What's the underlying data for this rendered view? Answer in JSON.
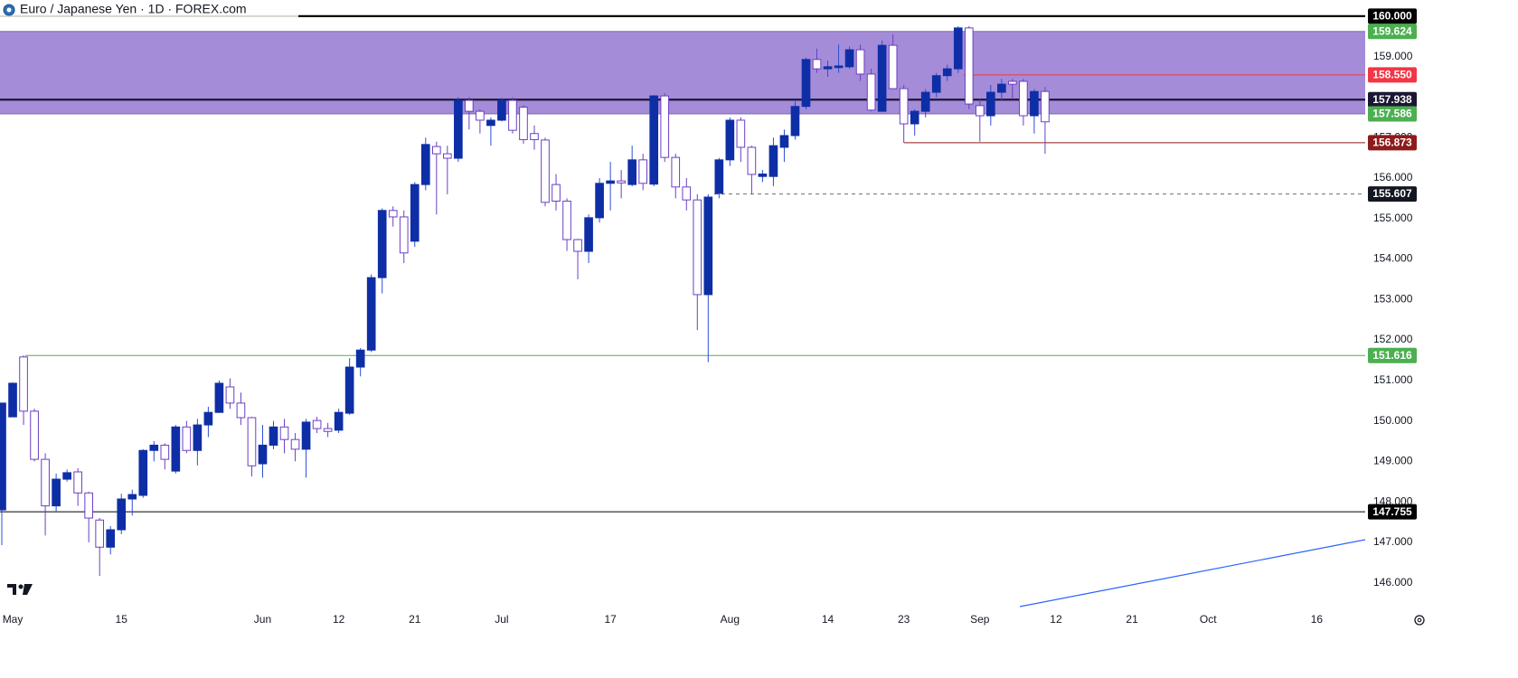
{
  "chart_data": {
    "type": "candlestick",
    "title": "Euro / Japanese Yen · 1D · FOREX.com",
    "categories": [
      null,
      "May",
      null,
      null,
      null,
      null,
      null,
      null,
      null,
      null,
      null,
      "15",
      null,
      null,
      null,
      null,
      null,
      null,
      null,
      null,
      null,
      null,
      null,
      null,
      "Jun",
      null,
      null,
      null,
      null,
      null,
      null,
      "12",
      null,
      null,
      null,
      null,
      null,
      null,
      "21",
      null,
      null,
      null,
      null,
      null,
      null,
      null,
      "Jul",
      null,
      null,
      null,
      null,
      null,
      null,
      null,
      null,
      null,
      "17",
      null,
      null,
      null,
      null,
      null,
      null,
      null,
      null,
      null,
      null,
      "Aug",
      null,
      null,
      null,
      null,
      null,
      null,
      null,
      null,
      "14",
      null,
      null,
      null,
      null,
      null,
      null,
      "23",
      null,
      null,
      null,
      null,
      null,
      null,
      "Sep",
      null,
      null,
      null,
      null,
      null,
      null,
      "12",
      null,
      null,
      null,
      null,
      null,
      null,
      "21",
      null,
      null,
      null,
      null,
      null,
      null,
      "Oct",
      null,
      null,
      null,
      null,
      null,
      null,
      null,
      null,
      null,
      "16",
      null,
      null,
      null,
      null
    ],
    "open": [
      147.8,
      150.1,
      151.58,
      150.24,
      149.05,
      147.9,
      148.56,
      148.74,
      148.22,
      147.55,
      146.88,
      147.31,
      148.07,
      148.16,
      149.27,
      149.4,
      148.76,
      149.85,
      149.27,
      149.9,
      150.21,
      150.84,
      150.44,
      150.08,
      148.94,
      149.4,
      149.85,
      149.54,
      149.3,
      150.01,
      149.81,
      149.77,
      150.19,
      151.33,
      151.75,
      153.54,
      155.2,
      155.04,
      154.44,
      155.84,
      156.78,
      156.6,
      156.49,
      157.92,
      157.65,
      157.3,
      157.43,
      157.92,
      157.75,
      157.1,
      156.94,
      155.84,
      155.43,
      154.48,
      154.19,
      155.02,
      155.87,
      155.93,
      155.84,
      156.45,
      155.85,
      158.03,
      156.51,
      155.78,
      155.46,
      153.12,
      155.62,
      156.45,
      157.43,
      156.76,
      156.04,
      156.04,
      156.76,
      157.05,
      157.77,
      158.93,
      158.7,
      158.73,
      158.75,
      159.17,
      158.57,
      157.65,
      159.28,
      158.21,
      157.34,
      157.65,
      158.12,
      158.53,
      158.7,
      159.71,
      157.79,
      157.54,
      158.12,
      158.39,
      158.39,
      157.54,
      158.14,
      null,
      null,
      null,
      null,
      null,
      null,
      null,
      null,
      null,
      null,
      null,
      null,
      null,
      null,
      null,
      null,
      null,
      null,
      null,
      null,
      null,
      null,
      null,
      null,
      null,
      null,
      null,
      null,
      null
    ],
    "high": [
      150.45,
      150.95,
      151.62,
      150.3,
      149.2,
      148.7,
      148.8,
      148.83,
      148.25,
      147.6,
      147.4,
      148.2,
      148.3,
      149.3,
      149.5,
      149.45,
      149.9,
      150.0,
      150.05,
      150.35,
      151.0,
      151.05,
      150.7,
      150.1,
      149.9,
      150.0,
      150.05,
      149.7,
      150.05,
      150.1,
      149.95,
      150.3,
      151.55,
      151.8,
      153.62,
      155.25,
      155.3,
      155.2,
      155.9,
      157.0,
      156.9,
      156.8,
      158.0,
      158.0,
      157.7,
      157.5,
      157.98,
      158.0,
      157.8,
      157.3,
      157.0,
      156.1,
      155.5,
      154.5,
      155.1,
      156.0,
      156.4,
      156.2,
      156.8,
      156.6,
      158.05,
      158.1,
      156.6,
      156.0,
      155.6,
      155.6,
      156.5,
      157.5,
      157.5,
      156.8,
      156.2,
      157.0,
      157.2,
      157.9,
      158.98,
      159.2,
      158.9,
      159.3,
      159.25,
      159.3,
      158.7,
      159.4,
      159.55,
      158.3,
      157.7,
      158.2,
      158.6,
      158.8,
      159.75,
      159.75,
      157.95,
      158.3,
      158.45,
      158.45,
      158.45,
      158.2,
      158.25,
      null,
      null,
      null,
      null,
      null,
      null,
      null,
      null,
      null,
      null,
      null,
      null,
      null,
      null,
      null,
      null,
      null,
      null,
      null,
      null,
      null,
      null,
      null,
      null,
      null,
      null,
      null,
      null,
      null
    ],
    "low": [
      146.93,
      150.1,
      149.9,
      149.0,
      147.17,
      147.75,
      148.5,
      147.9,
      147.0,
      146.17,
      146.7,
      147.2,
      147.66,
      148.1,
      149.0,
      148.8,
      148.7,
      149.2,
      148.9,
      149.6,
      150.2,
      150.3,
      149.9,
      148.63,
      148.6,
      149.3,
      149.2,
      149.0,
      148.6,
      149.7,
      149.6,
      149.7,
      150.15,
      151.1,
      151.7,
      153.15,
      154.8,
      153.9,
      154.3,
      155.7,
      155.1,
      155.6,
      156.4,
      157.2,
      157.1,
      156.8,
      157.4,
      157.1,
      156.85,
      156.7,
      155.3,
      155.2,
      154.2,
      153.5,
      153.9,
      154.9,
      155.2,
      155.5,
      155.8,
      155.7,
      155.8,
      156.4,
      155.5,
      155.2,
      152.24,
      151.45,
      155.5,
      156.3,
      156.4,
      155.6,
      155.9,
      155.8,
      156.4,
      156.95,
      157.7,
      158.6,
      158.5,
      158.6,
      158.7,
      158.4,
      157.65,
      157.65,
      158.2,
      156.87,
      157.05,
      157.5,
      158.0,
      158.4,
      158.6,
      157.7,
      156.9,
      157.3,
      157.9,
      157.95,
      157.3,
      157.1,
      156.6,
      null,
      null,
      null,
      null,
      null,
      null,
      null,
      null,
      null,
      null,
      null,
      null,
      null,
      null,
      null,
      null,
      null,
      null,
      null,
      null,
      null,
      null,
      null,
      null,
      null,
      null,
      null,
      null,
      null
    ],
    "close": [
      150.44,
      150.93,
      150.24,
      149.05,
      147.9,
      148.56,
      148.72,
      148.22,
      147.6,
      146.88,
      147.31,
      148.07,
      148.18,
      149.27,
      149.4,
      149.05,
      149.85,
      149.27,
      149.9,
      150.21,
      150.93,
      150.44,
      150.08,
      148.89,
      149.4,
      149.85,
      149.54,
      149.3,
      149.97,
      149.81,
      149.74,
      150.21,
      151.33,
      151.75,
      153.54,
      155.2,
      155.04,
      154.15,
      155.84,
      156.83,
      156.6,
      156.49,
      157.92,
      157.65,
      157.43,
      157.43,
      157.92,
      157.18,
      156.95,
      156.95,
      155.4,
      155.43,
      154.48,
      154.19,
      155.02,
      155.87,
      155.93,
      155.88,
      156.45,
      155.87,
      158.03,
      156.51,
      155.78,
      155.46,
      153.12,
      155.53,
      156.45,
      157.43,
      156.76,
      156.09,
      156.1,
      156.8,
      157.05,
      157.77,
      158.93,
      158.7,
      158.75,
      158.77,
      159.17,
      158.57,
      157.68,
      159.28,
      158.21,
      157.34,
      157.65,
      158.12,
      158.53,
      158.7,
      159.71,
      157.83,
      157.54,
      158.12,
      158.32,
      158.32,
      157.54,
      158.14,
      157.39,
      null,
      null,
      null,
      null,
      null,
      null,
      null,
      null,
      null,
      null,
      null,
      null,
      null,
      null,
      null,
      null,
      null,
      null,
      null,
      null,
      null,
      null,
      null,
      null,
      null,
      null,
      null,
      null,
      null
    ],
    "up_color": "#0e2ea6",
    "up_wick_color": "#2b4fd6",
    "down_color": "#ffffff",
    "down_border_color": "#6c3fc4",
    "ylim": [
      145.3,
      160.4
    ],
    "yticks": [
      {
        "value": 146,
        "label": "146.000"
      },
      {
        "value": 147,
        "label": "147.000"
      },
      {
        "value": 148,
        "label": "148.000"
      },
      {
        "value": 149,
        "label": "149.000"
      },
      {
        "value": 150,
        "label": "150.000"
      },
      {
        "value": 151,
        "label": "151.000"
      },
      {
        "value": 152,
        "label": "152.000"
      },
      {
        "value": 153,
        "label": "153.000"
      },
      {
        "value": 154,
        "label": "154.000"
      },
      {
        "value": 155,
        "label": "155.000"
      },
      {
        "value": 156,
        "label": "156.000"
      },
      {
        "value": 157,
        "label": "157.000"
      },
      {
        "value": 158,
        "label": "158.000"
      },
      {
        "value": 159,
        "label": "159.000"
      }
    ],
    "grid": false,
    "zone_color": "#8d6fd0",
    "levels": [
      {
        "value": 160,
        "label": "160.000",
        "color": "#000000",
        "line": "thick"
      },
      {
        "value": 159.624,
        "label": "159.624",
        "color": "#4caf50",
        "line": "zone-edge"
      },
      {
        "value": 158.55,
        "label": "158.550",
        "color": "#f23645",
        "line": "solid"
      },
      {
        "value": 157.938,
        "label": "157.938",
        "color": "#1b1733",
        "line": "thick"
      },
      {
        "value": 157.586,
        "label": "157.586",
        "color": "#4caf50",
        "line": "zone-edge"
      },
      {
        "value": 156.873,
        "label": "156.873",
        "color": "#8e1b1b",
        "line": "solid"
      },
      {
        "value": 155.607,
        "label": "155.607",
        "color": "#131722",
        "line": "dashed"
      },
      {
        "value": 151.616,
        "label": "151.616",
        "color": "#4caf50",
        "line": "solid"
      },
      {
        "value": 147.755,
        "label": "147.755",
        "color": "#000000",
        "line": "solid"
      }
    ]
  }
}
